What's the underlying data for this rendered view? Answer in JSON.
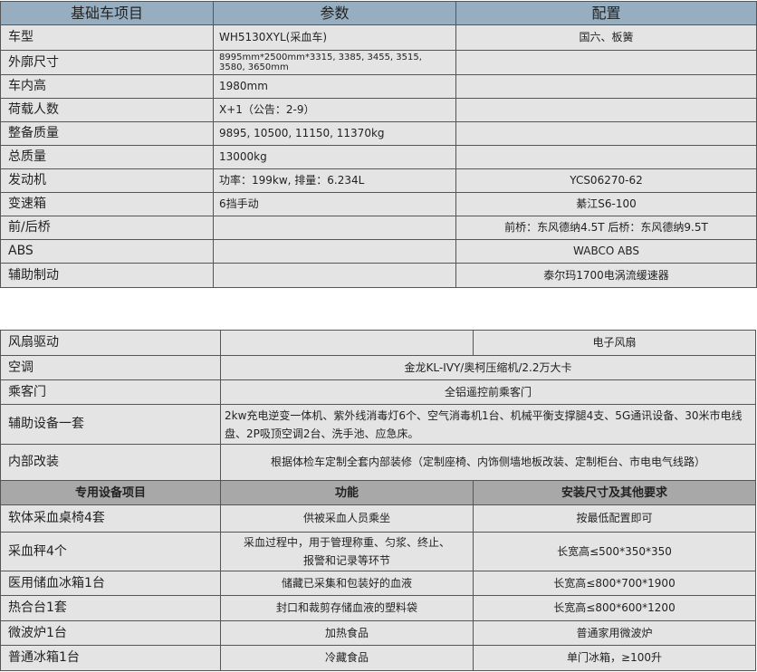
{
  "table1": {
    "headers": [
      "基础车项目",
      "参数",
      "配置"
    ],
    "rows": [
      {
        "item": "车型",
        "param": "WH5130XYL(采血车)",
        "config": "国六、板簧"
      },
      {
        "item": "外廓尺寸",
        "param": "8995mm*2500mm*3315, 3385, 3455, 3515, 3580, 3650mm",
        "config": ""
      },
      {
        "item": "车内高",
        "param": "1980mm",
        "config": ""
      },
      {
        "item": "荷载人数",
        "param": "X+1（公告：2-9）",
        "config": ""
      },
      {
        "item": "整备质量",
        "param": "9895, 10500, 11150, 11370kg",
        "config": ""
      },
      {
        "item": "总质量",
        "param": "13000kg",
        "config": ""
      },
      {
        "item": "发动机",
        "param": "功率：199kw, 排量：6.234L",
        "config": "YCS06270-62"
      },
      {
        "item": "变速箱",
        "param": "6挡手动",
        "config": "綦江S6-100"
      },
      {
        "item": "前/后桥",
        "param": "",
        "config": "前桥：东风德纳4.5T 后桥：东风德纳9.5T"
      },
      {
        "item": "ABS",
        "param": "",
        "config": "WABCO ABS"
      },
      {
        "item": "辅助制动",
        "param": "",
        "config": "泰尔玛1700电涡流缓速器"
      }
    ]
  },
  "table2": {
    "rows": [
      {
        "item": "风扇驱动",
        "value": "电子风扇"
      },
      {
        "item": "空调",
        "value": "金龙KL-IVY/奥柯压缩机/2.2万大卡"
      },
      {
        "item": "乘客门",
        "value": "全铝遥控前乘客门"
      },
      {
        "item": "辅助设备一套",
        "value": "2kw充电逆变一体机、紫外线消毒灯6个、空气消毒机1台、机械平衡支撑腿4支、5G通讯设备、30米市电线盘、2P吸顶空调2台、洗手池、应急床。"
      },
      {
        "item": "内部改装",
        "value": "根据体检车定制全套内部装修（定制座椅、内饰侧墙地板改装、定制柜台、市电电气线路）"
      }
    ],
    "equip_headers": [
      "专用设备项目",
      "功能",
      "安装尺寸及其他要求"
    ],
    "equipment": [
      {
        "item": "软体采血桌椅4套",
        "function": "供被采血人员乘坐",
        "req": "按最低配置即可"
      },
      {
        "item": "采血秤4个",
        "function": "采血过程中，用于管理称重、匀浆、终止、报警和记录等环节",
        "req": "长宽高≤500*350*350"
      },
      {
        "item": "医用储血冰箱1台",
        "function": "储藏已采集和包装好的血液",
        "req": "长宽高≤800*700*1900"
      },
      {
        "item": "热合台1套",
        "function": "封口和裁剪存储血液的塑料袋",
        "req": "长宽高≤800*600*1200"
      },
      {
        "item": "微波炉1台",
        "function": "加热食品",
        "req": "普通家用微波炉"
      },
      {
        "item": "普通冰箱1台",
        "function": "冷藏食品",
        "req": "单门冰箱，≥100升"
      }
    ]
  },
  "colors": {
    "header_blue": "#97adc0",
    "header_gray": "#a8a8a8",
    "cell": "#e4e4e4"
  }
}
